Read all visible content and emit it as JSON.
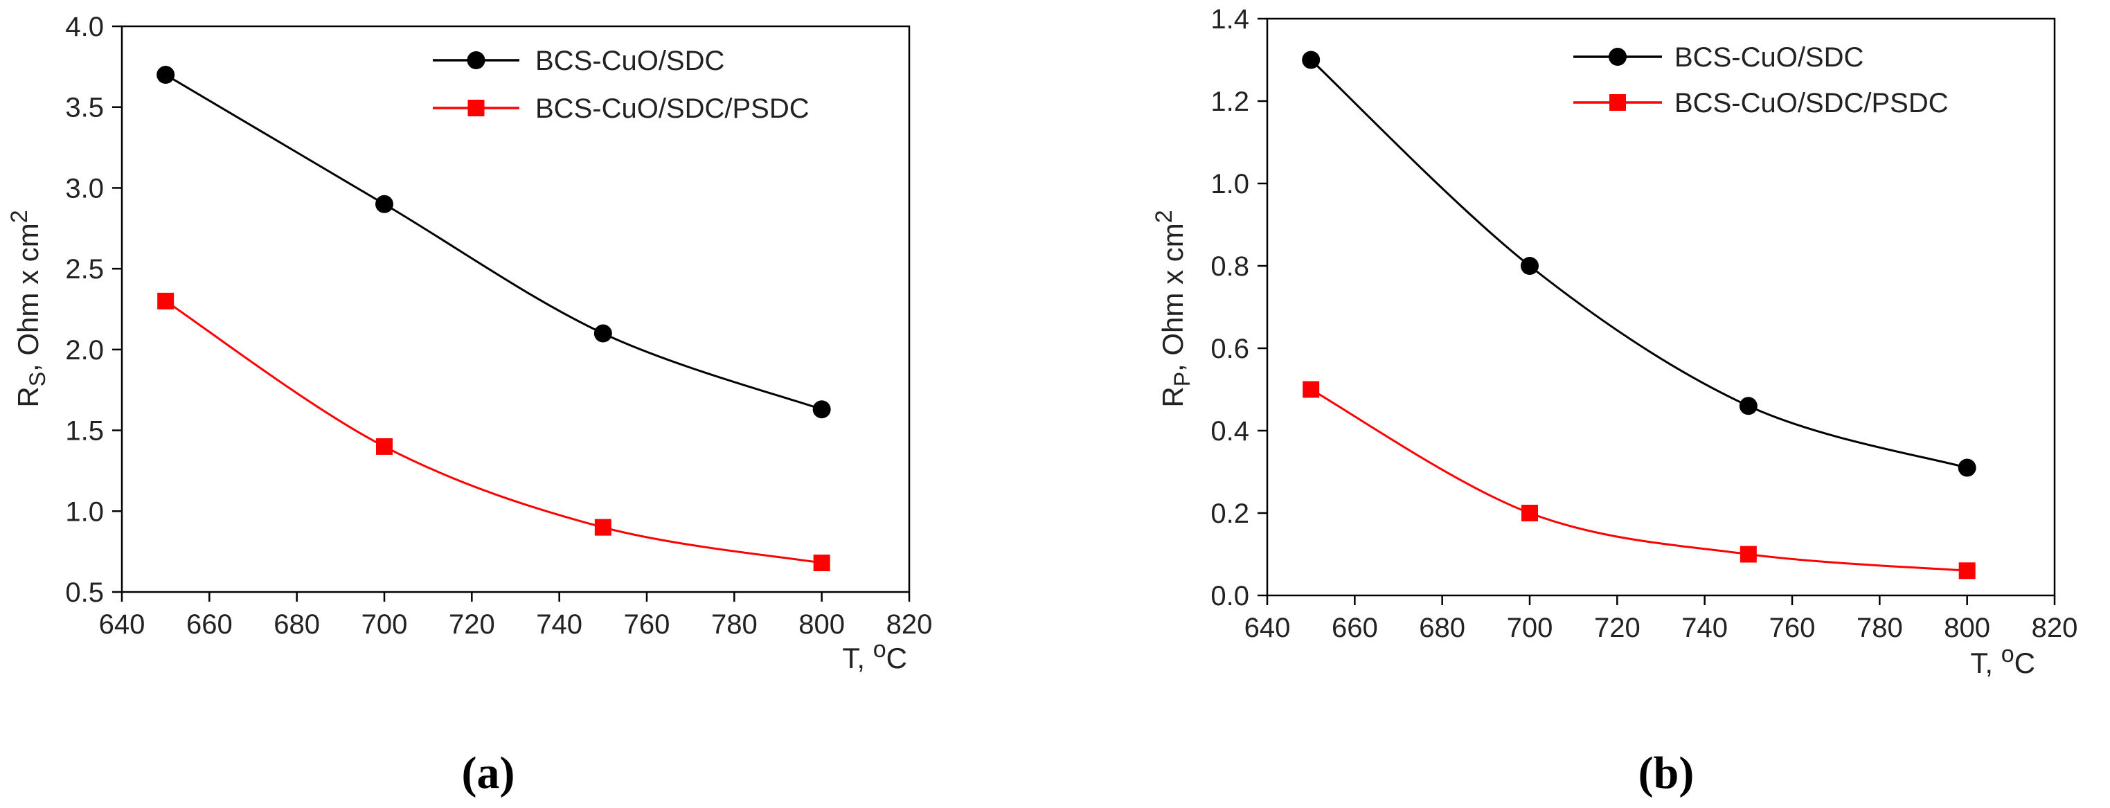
{
  "chart_data": [
    {
      "type": "line",
      "panel_label": "(a)",
      "title": "",
      "ylabel": {
        "main": "R",
        "sub": "S",
        "rest": ", Ohm x cm",
        "sup": "2"
      },
      "xlabel": {
        "main": "T, ",
        "sup": "o",
        "rest": "C"
      },
      "xlim": [
        640,
        820
      ],
      "ylim": [
        0.5,
        4.0
      ],
      "xticks": [
        640,
        660,
        680,
        700,
        720,
        740,
        760,
        780,
        800,
        820
      ],
      "yticks": [
        0.5,
        1.0,
        1.5,
        2.0,
        2.5,
        3.0,
        3.5,
        4.0
      ],
      "ytick_decimals": 1,
      "grid": false,
      "legend_position": "top-right",
      "x": [
        650,
        700,
        750,
        800
      ],
      "series": [
        {
          "name": "BCS-CuO/SDC",
          "values": [
            3.7,
            2.9,
            2.1,
            1.63
          ],
          "color": "#000000",
          "marker": "circle"
        },
        {
          "name": "BCS-CuO/SDC/PSDC",
          "values": [
            2.3,
            1.4,
            0.9,
            0.68
          ],
          "color": "#ff0000",
          "marker": "square"
        }
      ]
    },
    {
      "type": "line",
      "panel_label": "(b)",
      "title": "",
      "ylabel": {
        "main": "R",
        "sub": "P",
        "rest": ", Ohm x cm",
        "sup": "2"
      },
      "xlabel": {
        "main": "T, ",
        "sup": "o",
        "rest": "C"
      },
      "xlim": [
        640,
        820
      ],
      "ylim": [
        0.0,
        1.4
      ],
      "xticks": [
        640,
        660,
        680,
        700,
        720,
        740,
        760,
        780,
        800,
        820
      ],
      "yticks": [
        0.0,
        0.2,
        0.4,
        0.6,
        0.8,
        1.0,
        1.2,
        1.4
      ],
      "ytick_decimals": 1,
      "grid": false,
      "legend_position": "top-right",
      "x": [
        650,
        700,
        750,
        800
      ],
      "series": [
        {
          "name": "BCS-CuO/SDC",
          "values": [
            1.3,
            0.8,
            0.46,
            0.31
          ],
          "color": "#000000",
          "marker": "circle"
        },
        {
          "name": "BCS-CuO/SDC/PSDC",
          "values": [
            0.5,
            0.2,
            0.1,
            0.06
          ],
          "color": "#ff0000",
          "marker": "square"
        }
      ]
    }
  ]
}
